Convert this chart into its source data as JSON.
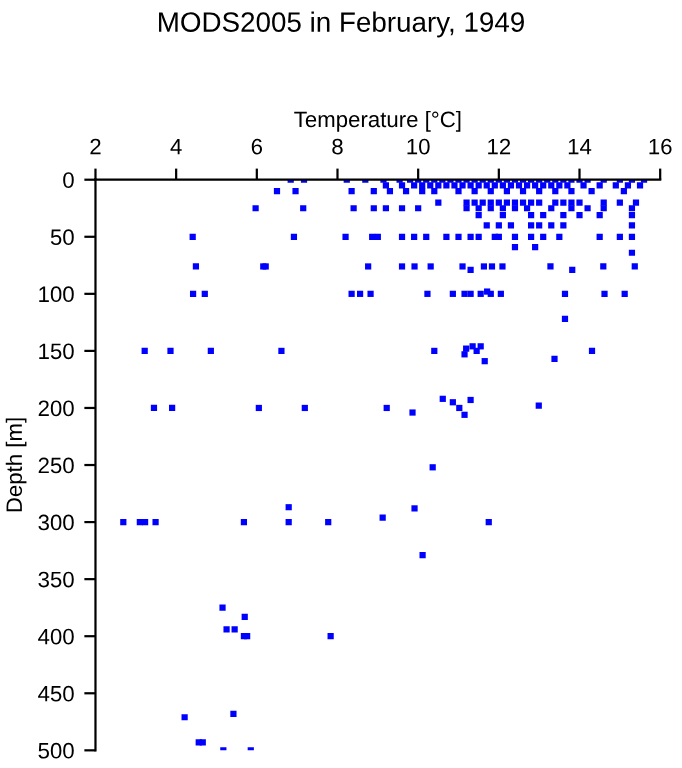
{
  "chart_data": {
    "type": "scatter",
    "title": "MODS2005 in February, 1949",
    "xlabel": "Temperature [°C]",
    "ylabel": "Depth [m]",
    "xlim": [
      2,
      16
    ],
    "xticks": [
      2,
      4,
      6,
      8,
      10,
      12,
      14,
      16
    ],
    "ylim": [
      500,
      0
    ],
    "yticks": [
      0,
      50,
      100,
      150,
      200,
      250,
      300,
      350,
      400,
      450,
      500
    ],
    "grid": false,
    "legend": false,
    "marker": "square",
    "series": [
      {
        "color": "#0000ff",
        "x": [
          6.84,
          7.17,
          8.23,
          8.69,
          9.14,
          9.54,
          9.8,
          10.0,
          10.2,
          10.4,
          10.6,
          10.8,
          11.0,
          11.2,
          11.4,
          11.6,
          11.8,
          12.0,
          12.2,
          12.4,
          12.6,
          12.8,
          13.0,
          13.2,
          13.4,
          13.6,
          13.8,
          14.0,
          14.2,
          14.6,
          15.0,
          15.3,
          15.6,
          9.2,
          9.6,
          9.9,
          10.1,
          10.3,
          10.5,
          10.7,
          10.9,
          11.1,
          11.3,
          11.5,
          11.7,
          11.9,
          12.1,
          12.3,
          12.5,
          12.7,
          12.9,
          13.1,
          13.3,
          13.5,
          13.7,
          14.1,
          14.5,
          14.9,
          15.2,
          15.5,
          6.5,
          6.96,
          8.35,
          8.9,
          9.3,
          9.7,
          10.1,
          10.4,
          11.0,
          11.4,
          11.8,
          12.2,
          12.6,
          13.0,
          13.4,
          13.8,
          14.3,
          15.1,
          10.5,
          11.2,
          11.4,
          11.6,
          11.8,
          12.0,
          12.2,
          12.4,
          12.6,
          12.8,
          13.0,
          13.4,
          13.6,
          13.8,
          14.0,
          14.6,
          15.0,
          15.4,
          5.97,
          7.15,
          8.4,
          8.9,
          9.2,
          9.6,
          10.0,
          11.2,
          11.5,
          11.8,
          12.1,
          12.4,
          12.7,
          13.3,
          13.8,
          14.2,
          14.6,
          15.3,
          11.5,
          12.1,
          12.8,
          13.1,
          13.6,
          14.0,
          14.5,
          15.3,
          11.7,
          12.0,
          12.3,
          12.8,
          13.0,
          13.3,
          13.6,
          15.3,
          4.41,
          6.92,
          8.2,
          8.86,
          9.0,
          9.6,
          9.9,
          10.2,
          10.7,
          11.0,
          11.3,
          11.5,
          11.9,
          12.0,
          12.4,
          12.8,
          13.1,
          13.5,
          14.5,
          15.0,
          15.3,
          12.4,
          12.9,
          15.3,
          4.49,
          6.16,
          6.22,
          8.76,
          9.6,
          9.91,
          10.31,
          11.1,
          11.63,
          11.83,
          12.09,
          13.28,
          14.59,
          15.37,
          11.3,
          13.82,
          4.42,
          4.71,
          8.35,
          8.56,
          8.82,
          10.23,
          10.86,
          11.15,
          11.3,
          11.55,
          11.8,
          12.05,
          13.64,
          14.62,
          15.12,
          11.71,
          13.64,
          3.22,
          3.86,
          4.86,
          6.61,
          10.4,
          11.45,
          14.31,
          11.19,
          11.35,
          11.55,
          11.65,
          13.38,
          11.15,
          3.45,
          3.9,
          6.05,
          7.19,
          9.22,
          11.02,
          9.86,
          10.61,
          10.86,
          11.15,
          11.3,
          12.99,
          10.36,
          2.69,
          3.1,
          3.23,
          3.49,
          5.68,
          6.79,
          7.77,
          11.75,
          6.79,
          9.12,
          9.91,
          10.11,
          5.15,
          5.7,
          5.25,
          5.45,
          5.68,
          5.76,
          7.83,
          4.21,
          5.42,
          4.56,
          4.66,
          5.17,
          5.85
        ],
        "values": [
          0,
          0,
          0,
          0,
          0,
          0,
          0,
          0,
          0,
          0,
          0,
          0,
          0,
          0,
          0,
          0,
          0,
          0,
          0,
          0,
          0,
          0,
          0,
          0,
          0,
          0,
          0,
          0,
          0,
          0,
          0,
          0,
          0,
          5,
          5,
          5,
          5,
          5,
          5,
          5,
          5,
          5,
          5,
          5,
          5,
          5,
          5,
          5,
          5,
          5,
          5,
          5,
          5,
          5,
          5,
          5,
          5,
          5,
          5,
          5,
          10,
          10,
          10,
          10,
          10,
          10,
          10,
          10,
          10,
          10,
          10,
          10,
          10,
          10,
          10,
          10,
          10,
          10,
          20,
          20,
          20,
          20,
          20,
          20,
          20,
          20,
          20,
          20,
          20,
          20,
          20,
          20,
          20,
          20,
          20,
          20,
          25,
          25,
          25,
          25,
          25,
          25,
          25,
          25,
          25,
          25,
          25,
          25,
          25,
          25,
          25,
          25,
          25,
          25,
          31,
          31,
          31,
          31,
          31,
          31,
          31,
          31,
          40,
          40,
          40,
          40,
          40,
          40,
          40,
          40,
          50,
          50,
          50,
          50,
          50,
          50,
          50,
          50,
          50,
          50,
          50,
          50,
          50,
          50,
          50,
          50,
          50,
          50,
          50,
          50,
          50,
          59,
          59,
          64,
          76,
          76,
          76,
          76,
          76,
          76,
          76,
          76,
          76,
          76,
          76,
          76,
          76,
          76,
          79,
          79,
          100,
          100,
          100,
          100,
          100,
          100,
          100,
          100,
          100,
          100,
          100,
          100,
          100,
          100,
          100,
          98,
          122,
          150,
          150,
          150,
          150,
          150,
          150,
          150,
          148,
          146,
          146,
          159,
          157,
          153,
          200,
          200,
          200,
          200,
          200,
          200,
          204,
          192,
          195,
          206,
          193,
          198,
          252,
          300,
          300,
          300,
          300,
          300,
          300,
          300,
          300,
          287,
          296,
          288,
          329,
          375,
          383,
          394,
          394,
          400,
          400,
          400,
          471,
          468,
          493,
          493,
          500,
          500
        ]
      }
    ]
  }
}
